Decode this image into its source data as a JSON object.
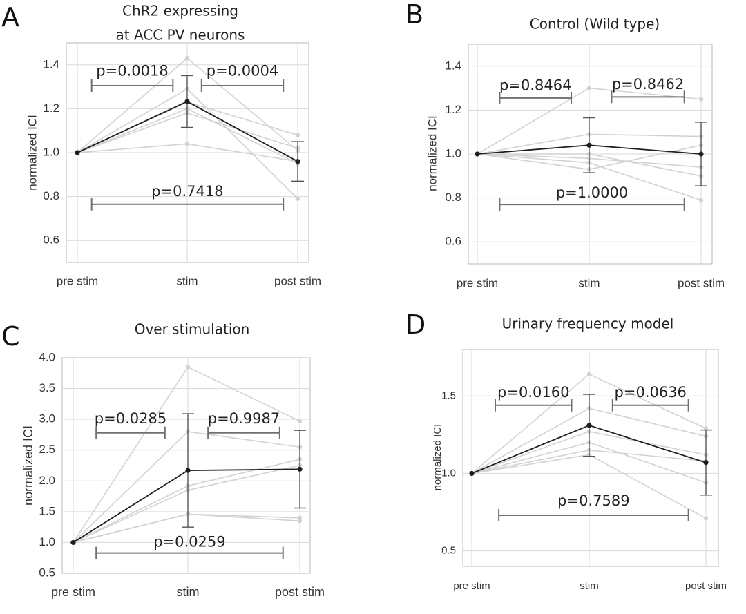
{
  "chart_data": [
    {
      "type": "line",
      "panel": "A",
      "title": [
        "ChR2 expressing",
        "at ACC PV neurons"
      ],
      "ylabel": "normalized ICI",
      "categories": [
        "pre stim",
        "stim",
        "post stim"
      ],
      "yticks": [
        "0.6",
        "0.8",
        "1.0",
        "1.2",
        "1.4"
      ],
      "ylim": [
        0.5,
        1.5
      ],
      "individuals": [
        [
          1.0,
          1.43,
          1.01
        ],
        [
          1.0,
          1.29,
          0.79
        ],
        [
          1.0,
          1.23,
          1.08
        ],
        [
          1.0,
          1.2,
          0.95
        ],
        [
          1.0,
          1.18,
          1.02
        ],
        [
          1.0,
          1.04,
          0.96
        ]
      ],
      "mean": [
        1.0,
        1.233,
        0.96
      ],
      "error": [
        0,
        0.118,
        0.09
      ],
      "comparisons": [
        {
          "label": "p=0.0018",
          "from": 0.13,
          "to": 0.87,
          "y": 1.305,
          "text_y": 1.37
        },
        {
          "label": "p=0.0004",
          "from": 1.13,
          "to": 1.87,
          "y": 1.305,
          "text_y": 1.37
        },
        {
          "label": "p=0.7418",
          "from": 0.13,
          "to": 1.87,
          "y": 0.765,
          "text_y": 0.82
        }
      ]
    },
    {
      "type": "line",
      "panel": "B",
      "title": [
        "Control (Wild type)"
      ],
      "ylabel": "normalized ICI",
      "categories": [
        "pre stim",
        "stim",
        "post stim"
      ],
      "yticks": [
        "0.6",
        "0.8",
        "1.0",
        "1.2",
        "1.4"
      ],
      "ylim": [
        0.5,
        1.5
      ],
      "individuals": [
        [
          1.0,
          1.3,
          1.25
        ],
        [
          1.0,
          1.09,
          1.08
        ],
        [
          1.0,
          1.0,
          0.9
        ],
        [
          1.0,
          0.98,
          0.94
        ],
        [
          1.0,
          0.96,
          0.79
        ],
        [
          1.0,
          0.93,
          1.04
        ]
      ],
      "mean": [
        1.0,
        1.04,
        1.0
      ],
      "error": [
        0,
        0.125,
        0.145
      ],
      "comparisons": [
        {
          "label": "p=0.8464",
          "from": 0.2,
          "to": 0.84,
          "y": 1.255,
          "text_y": 1.31
        },
        {
          "label": "p=0.8462",
          "from": 1.2,
          "to": 1.85,
          "y": 1.26,
          "text_y": 1.315
        },
        {
          "label": "p=1.0000",
          "from": 0.2,
          "to": 1.85,
          "y": 0.77,
          "text_y": 0.82
        }
      ]
    },
    {
      "type": "line",
      "panel": "C",
      "title": [
        "Over stimulation"
      ],
      "ylabel": "normalized ICI",
      "categories": [
        "pre stim",
        "stim",
        "post stim"
      ],
      "yticks": [
        "0.5",
        "1.0",
        "1.5",
        "2.0",
        "2.5",
        "3.0",
        "3.5",
        "4.0"
      ],
      "ylim": [
        0.5,
        4.0
      ],
      "individuals": [
        [
          1.0,
          3.85,
          2.97
        ],
        [
          1.0,
          2.8,
          2.55
        ],
        [
          1.0,
          1.92,
          2.35
        ],
        [
          1.0,
          1.85,
          2.25
        ],
        [
          1.0,
          1.46,
          1.35
        ],
        [
          1.0,
          1.46,
          1.4
        ]
      ],
      "mean": [
        1.0,
        2.17,
        2.19
      ],
      "error": [
        0,
        0.92,
        0.63
      ],
      "comparisons": [
        {
          "label": "p=0.0285",
          "from": 0.2,
          "to": 0.8,
          "y": 2.78,
          "text_y": 3.0
        },
        {
          "label": "p=0.9987",
          "from": 1.18,
          "to": 1.82,
          "y": 2.78,
          "text_y": 3.0
        },
        {
          "label": "p=0.0259",
          "from": 0.2,
          "to": 1.85,
          "y": 0.83,
          "text_y": 1.0
        }
      ]
    },
    {
      "type": "line",
      "panel": "D",
      "title": [
        "Urinary frequency model"
      ],
      "ylabel": "normalized ICI",
      "categories": [
        "pre stim",
        "stim",
        "post stim"
      ],
      "yticks": [
        "0.5",
        "1.0",
        "1.5"
      ],
      "ylim": [
        0.4,
        1.8
      ],
      "individuals": [
        [
          1.0,
          1.64,
          1.29
        ],
        [
          1.0,
          1.42,
          1.24
        ],
        [
          1.0,
          1.27,
          1.12
        ],
        [
          1.0,
          1.2,
          0.94
        ],
        [
          1.0,
          1.15,
          1.08
        ],
        [
          1.0,
          1.12,
          0.71
        ]
      ],
      "mean": [
        1.0,
        1.31,
        1.07
      ],
      "error": [
        0,
        0.2,
        0.21
      ],
      "comparisons": [
        {
          "label": "p=0.0160",
          "from": 0.2,
          "to": 0.85,
          "y": 1.44,
          "text_y": 1.52
        },
        {
          "label": "p=0.0636",
          "from": 1.2,
          "to": 1.85,
          "y": 1.44,
          "text_y": 1.52
        },
        {
          "label": "p=0.7589",
          "from": 0.23,
          "to": 1.85,
          "y": 0.73,
          "text_y": 0.82
        }
      ]
    }
  ],
  "panel_letters": [
    "A",
    "B",
    "C",
    "D"
  ],
  "colors": {
    "individual": "#d2d2d2",
    "mean": "#1e1e1e",
    "error": "#555555",
    "bracket": "#707070",
    "grid": "#d9d9d9",
    "axis": "#b8b8b8"
  }
}
